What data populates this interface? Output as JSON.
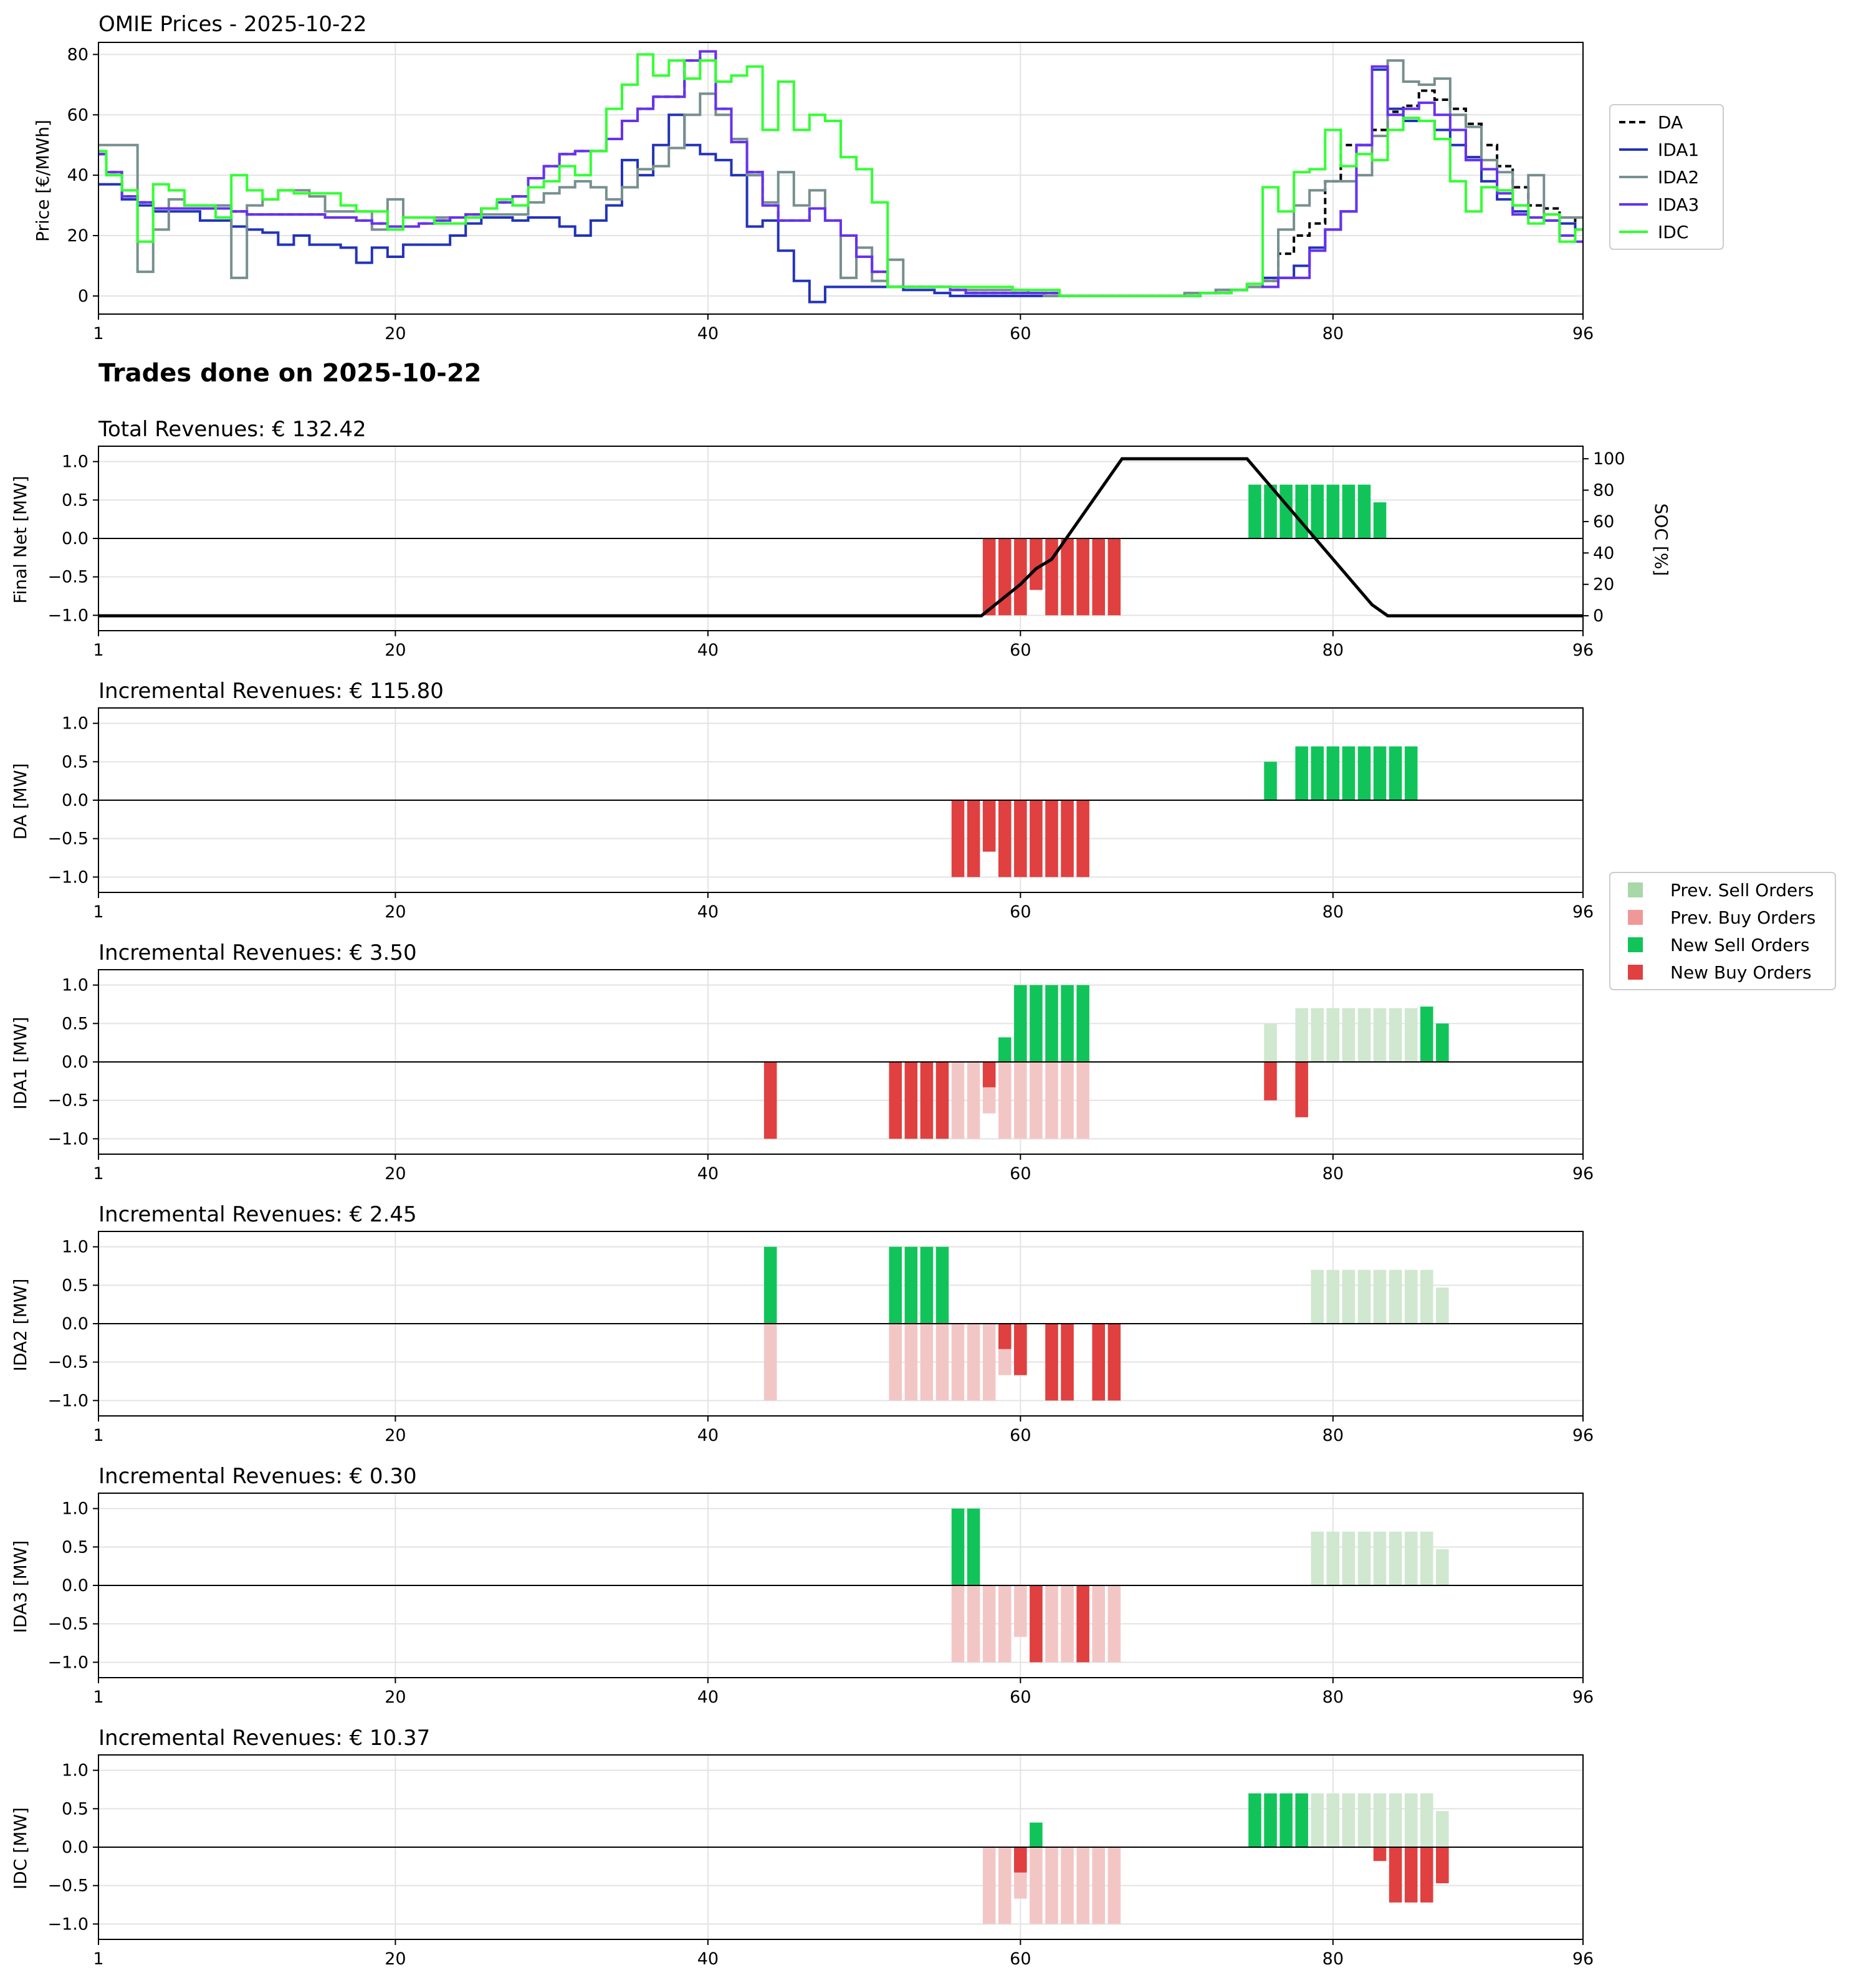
{
  "prices_panel": {
    "title": "OMIE Prices - 2025-10-22",
    "ylabel": "Price [€/MWh]"
  },
  "trades_heading": "Trades done on 2025-10-22",
  "panels": [
    {
      "key": "final",
      "title": "Total Revenues: € 132.42",
      "ylabel": "Final Net [MW]",
      "y2label": "SOC [%]"
    },
    {
      "key": "da",
      "title": "Incremental Revenues: € 115.80",
      "ylabel": "DA [MW]"
    },
    {
      "key": "ida1",
      "title": "Incremental Revenues: € 3.50",
      "ylabel": "IDA1 [MW]"
    },
    {
      "key": "ida2",
      "title": "Incremental Revenues: € 2.45",
      "ylabel": "IDA2 [MW]"
    },
    {
      "key": "ida3",
      "title": "Incremental Revenues: € 0.30",
      "ylabel": "IDA3 [MW]"
    },
    {
      "key": "idc",
      "title": "Incremental Revenues: € 10.37",
      "ylabel": "IDC [MW]"
    }
  ],
  "legends": {
    "prices": [
      "DA",
      "IDA1",
      "IDA2",
      "IDA3",
      "IDC"
    ],
    "orders": [
      "Prev. Sell Orders",
      "Prev. Buy Orders",
      "New Sell Orders",
      "New Buy Orders"
    ]
  },
  "colors": {
    "DA": "#000000",
    "IDA1": "#2233bb",
    "IDA2": "#778f8f",
    "IDA3": "#6633ee",
    "IDC": "#33ff33",
    "new_sell": "#11c45a",
    "new_buy": "#e04040",
    "prev_sell": "#cfe8cf",
    "prev_buy": "#f3c6c6",
    "legend_prev_sell": "#a8d8a8",
    "legend_prev_buy": "#f09898",
    "soc": "#000000"
  },
  "chart_data": [
    {
      "type": "line",
      "title": "OMIE Prices - 2025-10-22",
      "xlabel": "",
      "ylabel": "Price [€/MWh]",
      "xlim": [
        1,
        96
      ],
      "ylim": [
        -6,
        84
      ],
      "x_ticks": [
        1,
        20,
        40,
        60,
        80,
        96
      ],
      "y_ticks": [
        0,
        20,
        40,
        60,
        80
      ],
      "step": true,
      "grid": true,
      "legend": "right",
      "series": [
        {
          "name": "DA",
          "style": "dashed",
          "values": [
            47,
            41,
            33,
            31,
            29,
            29,
            29,
            29,
            29,
            28,
            27,
            27,
            27,
            27,
            27,
            26,
            26,
            25,
            24,
            23,
            23,
            24,
            25,
            26,
            27,
            29,
            31,
            33,
            39,
            43,
            47,
            48,
            48,
            52,
            58,
            62,
            66,
            66,
            78,
            81,
            62,
            51,
            41,
            30,
            25,
            25,
            29,
            25,
            20,
            13,
            8,
            3,
            3,
            3,
            3,
            2,
            1,
            1,
            1,
            1,
            1,
            1,
            0,
            0,
            0,
            0,
            0,
            0,
            0,
            0,
            0,
            1,
            1,
            2,
            4,
            5,
            14,
            20,
            24,
            38,
            50,
            50,
            55,
            61,
            63,
            68,
            65,
            62,
            57,
            50,
            43,
            36,
            30,
            29,
            26,
            22
          ]
        },
        {
          "name": "IDA1",
          "style": "solid",
          "values": [
            37,
            37,
            32,
            30,
            28,
            28,
            28,
            25,
            25,
            23,
            22,
            21,
            17,
            20,
            17,
            17,
            16,
            11,
            16,
            13,
            17,
            17,
            17,
            20,
            24,
            26,
            26,
            25,
            26,
            26,
            23,
            20,
            25,
            30,
            45,
            40,
            50,
            60,
            50,
            47,
            45,
            40,
            23,
            25,
            15,
            5,
            -2,
            3,
            3,
            3,
            3,
            3,
            2,
            2,
            1,
            0,
            0,
            0,
            0,
            0,
            0,
            0,
            0,
            0,
            0,
            0,
            0,
            0,
            0,
            0,
            0,
            1,
            2,
            2,
            3,
            6,
            6,
            10,
            16,
            22,
            28,
            50,
            75,
            62,
            58,
            58,
            55,
            50,
            46,
            38,
            32,
            28,
            26,
            25,
            24,
            22
          ]
        },
        {
          "name": "IDA2",
          "style": "solid",
          "values": [
            50,
            50,
            50,
            8,
            22,
            32,
            30,
            30,
            30,
            6,
            30,
            32,
            35,
            35,
            33,
            28,
            28,
            28,
            22,
            32,
            26,
            26,
            26,
            26,
            26,
            27,
            27,
            27,
            31,
            34,
            36,
            38,
            36,
            32,
            36,
            42,
            43,
            49,
            60,
            67,
            60,
            52,
            40,
            31,
            41,
            30,
            35,
            25,
            6,
            16,
            5,
            12,
            3,
            3,
            3,
            2,
            2,
            2,
            2,
            2,
            1,
            0,
            0,
            0,
            0,
            0,
            0,
            0,
            0,
            0,
            1,
            1,
            2,
            2,
            3,
            5,
            22,
            30,
            35,
            38,
            38,
            40,
            53,
            78,
            71,
            70,
            72,
            60,
            56,
            45,
            41,
            30,
            40,
            27,
            26,
            26
          ]
        },
        {
          "name": "IDA3",
          "style": "solid",
          "values": [
            47,
            41,
            33,
            31,
            29,
            29,
            29,
            29,
            29,
            28,
            27,
            27,
            27,
            27,
            27,
            26,
            26,
            25,
            24,
            23,
            23,
            24,
            25,
            26,
            27,
            29,
            31,
            33,
            39,
            43,
            47,
            48,
            48,
            52,
            58,
            62,
            66,
            66,
            78,
            81,
            62,
            51,
            41,
            30,
            25,
            25,
            29,
            25,
            20,
            13,
            8,
            3,
            3,
            3,
            3,
            2,
            1,
            1,
            1,
            1,
            1,
            1,
            0,
            0,
            0,
            0,
            0,
            0,
            0,
            0,
            0,
            1,
            1,
            2,
            4,
            3,
            6,
            6,
            15,
            22,
            28,
            50,
            76,
            60,
            62,
            64,
            60,
            55,
            45,
            42,
            34,
            27,
            26,
            25,
            20,
            18
          ]
        },
        {
          "name": "IDC",
          "style": "solid",
          "values": [
            48,
            40,
            35,
            18,
            37,
            35,
            30,
            30,
            26,
            40,
            35,
            32,
            35,
            34,
            34,
            34,
            30,
            28,
            28,
            22,
            26,
            26,
            24,
            24,
            26,
            29,
            32,
            30,
            36,
            38,
            43,
            40,
            48,
            62,
            70,
            80,
            73,
            78,
            72,
            78,
            71,
            73,
            76,
            55,
            71,
            55,
            60,
            58,
            46,
            42,
            31,
            3,
            3,
            3,
            3,
            3,
            3,
            3,
            3,
            2,
            2,
            2,
            0,
            0,
            0,
            0,
            0,
            0,
            0,
            0,
            0,
            1,
            1,
            2,
            4,
            36,
            28,
            41,
            42,
            55,
            43,
            47,
            45,
            55,
            59,
            58,
            52,
            38,
            28,
            36,
            35,
            30,
            24,
            27,
            18,
            22
          ]
        }
      ]
    },
    {
      "type": "bar",
      "title": "Total Revenues: € 132.42",
      "ylabel": "Final Net [MW]",
      "y2label": "SOC [%]",
      "xlim": [
        1,
        96
      ],
      "ylim": [
        -1.2,
        1.2
      ],
      "y2lim": [
        -9.5,
        108
      ],
      "x_ticks": [
        1,
        20,
        40,
        60,
        80,
        96
      ],
      "y_ticks": [
        -1.0,
        -0.5,
        0.0,
        0.5,
        1.0
      ],
      "y2_ticks": [
        0,
        20,
        40,
        60,
        80,
        100
      ],
      "grid": true,
      "new_sell": {
        "x": [
          75,
          76,
          77,
          78,
          79,
          80,
          81,
          82,
          83
        ],
        "values": [
          0.7,
          0.7,
          0.7,
          0.7,
          0.7,
          0.7,
          0.7,
          0.7,
          0.47
        ]
      },
      "new_buy": {
        "x": [
          58,
          59,
          60,
          61,
          62,
          63,
          64,
          65,
          66
        ],
        "values": [
          -1.0,
          -1.0,
          -1.0,
          -0.67,
          -1.0,
          -1.0,
          -1.0,
          -1.0,
          -1.0
        ]
      },
      "soc_line": {
        "x": [
          1,
          57.5,
          60,
          61,
          62,
          66.5,
          74.5,
          82.5,
          83.5,
          96
        ],
        "values": [
          0,
          0,
          20,
          30,
          36,
          100,
          100,
          7,
          0,
          0
        ]
      }
    },
    {
      "type": "bar",
      "title": "Incremental Revenues: € 115.80",
      "ylabel": "DA [MW]",
      "xlim": [
        1,
        96
      ],
      "ylim": [
        -1.2,
        1.2
      ],
      "x_ticks": [
        1,
        20,
        40,
        60,
        80,
        96
      ],
      "y_ticks": [
        -1.0,
        -0.5,
        0.0,
        0.5,
        1.0
      ],
      "grid": true,
      "new_sell": {
        "x": [
          76,
          78,
          79,
          80,
          81,
          82,
          83,
          84,
          85
        ],
        "values": [
          0.5,
          0.7,
          0.7,
          0.7,
          0.7,
          0.7,
          0.7,
          0.7,
          0.7
        ]
      },
      "new_buy": {
        "x": [
          56,
          57,
          58,
          59,
          60,
          61,
          62,
          63,
          64
        ],
        "values": [
          -1.0,
          -1.0,
          -0.67,
          -1.0,
          -1.0,
          -1.0,
          -1.0,
          -1.0,
          -1.0
        ]
      }
    },
    {
      "type": "bar",
      "title": "Incremental Revenues: € 3.50",
      "ylabel": "IDA1 [MW]",
      "xlim": [
        1,
        96
      ],
      "ylim": [
        -1.2,
        1.2
      ],
      "x_ticks": [
        1,
        20,
        40,
        60,
        80,
        96
      ],
      "y_ticks": [
        -1.0,
        -0.5,
        0.0,
        0.5,
        1.0
      ],
      "grid": true,
      "prev_sell": {
        "x": [
          76,
          78,
          79,
          80,
          81,
          82,
          83,
          84,
          85
        ],
        "values": [
          0.5,
          0.7,
          0.7,
          0.7,
          0.7,
          0.7,
          0.7,
          0.7,
          0.7
        ]
      },
      "prev_buy": {
        "x": [
          56,
          57,
          58,
          59,
          60,
          61,
          62,
          63,
          64
        ],
        "values": [
          -1.0,
          -1.0,
          -0.67,
          -1.0,
          -1.0,
          -1.0,
          -1.0,
          -1.0,
          -1.0
        ]
      },
      "new_sell": {
        "x": [
          59,
          60,
          61,
          62,
          63,
          64,
          86,
          87
        ],
        "values": [
          0.32,
          1.0,
          1.0,
          1.0,
          1.0,
          1.0,
          0.72,
          0.5
        ]
      },
      "new_buy": {
        "x": [
          44,
          52,
          53,
          54,
          55,
          58,
          76,
          78
        ],
        "values": [
          -1.0,
          -1.0,
          -1.0,
          -1.0,
          -1.0,
          -0.33,
          -0.5,
          -0.72
        ]
      }
    },
    {
      "type": "bar",
      "title": "Incremental Revenues: € 2.45",
      "ylabel": "IDA2 [MW]",
      "xlim": [
        1,
        96
      ],
      "ylim": [
        -1.2,
        1.2
      ],
      "x_ticks": [
        1,
        20,
        40,
        60,
        80,
        96
      ],
      "y_ticks": [
        -1.0,
        -0.5,
        0.0,
        0.5,
        1.0
      ],
      "grid": true,
      "prev_sell": {
        "x": [
          79,
          80,
          81,
          82,
          83,
          84,
          85,
          86,
          87
        ],
        "values": [
          0.7,
          0.7,
          0.7,
          0.7,
          0.7,
          0.7,
          0.7,
          0.7,
          0.47
        ]
      },
      "prev_buy": {
        "x": [
          44,
          52,
          53,
          54,
          55,
          56,
          57,
          58,
          59,
          60
        ],
        "values": [
          -1.0,
          -1.0,
          -1.0,
          -1.0,
          -1.0,
          -1.0,
          -1.0,
          -1.0,
          -0.67,
          -0.67
        ]
      },
      "new_sell": {
        "x": [
          44,
          52,
          53,
          54,
          55
        ],
        "values": [
          1.0,
          1.0,
          1.0,
          1.0,
          1.0
        ]
      },
      "new_buy": {
        "x": [
          59,
          60,
          62,
          63,
          65,
          66
        ],
        "values": [
          -0.33,
          -0.67,
          -1.0,
          -1.0,
          -1.0,
          -1.0
        ]
      }
    },
    {
      "type": "bar",
      "title": "Incremental Revenues: € 0.30",
      "ylabel": "IDA3 [MW]",
      "xlim": [
        1,
        96
      ],
      "ylim": [
        -1.2,
        1.2
      ],
      "x_ticks": [
        1,
        20,
        40,
        60,
        80,
        96
      ],
      "y_ticks": [
        -1.0,
        -0.5,
        0.0,
        0.5,
        1.0
      ],
      "grid": true,
      "prev_sell": {
        "x": [
          79,
          80,
          81,
          82,
          83,
          84,
          85,
          86,
          87
        ],
        "values": [
          0.7,
          0.7,
          0.7,
          0.7,
          0.7,
          0.7,
          0.7,
          0.7,
          0.47
        ]
      },
      "prev_buy": {
        "x": [
          56,
          57,
          58,
          59,
          60,
          61,
          62,
          63,
          64,
          65,
          66
        ],
        "values": [
          -1.0,
          -1.0,
          -1.0,
          -1.0,
          -0.67,
          -1.0,
          -1.0,
          -1.0,
          -1.0,
          -1.0,
          -1.0
        ]
      },
      "new_sell": {
        "x": [
          56,
          57
        ],
        "values": [
          1.0,
          1.0
        ]
      },
      "new_buy": {
        "x": [
          61,
          64
        ],
        "values": [
          -1.0,
          -1.0
        ]
      }
    },
    {
      "type": "bar",
      "title": "Incremental Revenues: € 10.37",
      "ylabel": "IDC [MW]",
      "xlim": [
        1,
        96
      ],
      "ylim": [
        -1.2,
        1.2
      ],
      "x_ticks": [
        1,
        20,
        40,
        60,
        80,
        96
      ],
      "y_ticks": [
        -1.0,
        -0.5,
        0.0,
        0.5,
        1.0
      ],
      "grid": true,
      "prev_sell": {
        "x": [
          79,
          80,
          81,
          82,
          83,
          84,
          85,
          86,
          87
        ],
        "values": [
          0.7,
          0.7,
          0.7,
          0.7,
          0.7,
          0.7,
          0.7,
          0.7,
          0.47
        ]
      },
      "prev_buy": {
        "x": [
          58,
          59,
          60,
          61,
          62,
          63,
          64,
          65,
          66
        ],
        "values": [
          -1.0,
          -1.0,
          -0.67,
          -1.0,
          -1.0,
          -1.0,
          -1.0,
          -1.0,
          -1.0
        ]
      },
      "new_sell": {
        "x": [
          61,
          75,
          76,
          77,
          78
        ],
        "values": [
          0.32,
          0.7,
          0.7,
          0.7,
          0.7
        ]
      },
      "new_buy": {
        "x": [
          60,
          83,
          84,
          85,
          86,
          87
        ],
        "values": [
          -0.33,
          -0.18,
          -0.72,
          -0.72,
          -0.72,
          -0.47
        ]
      }
    }
  ]
}
